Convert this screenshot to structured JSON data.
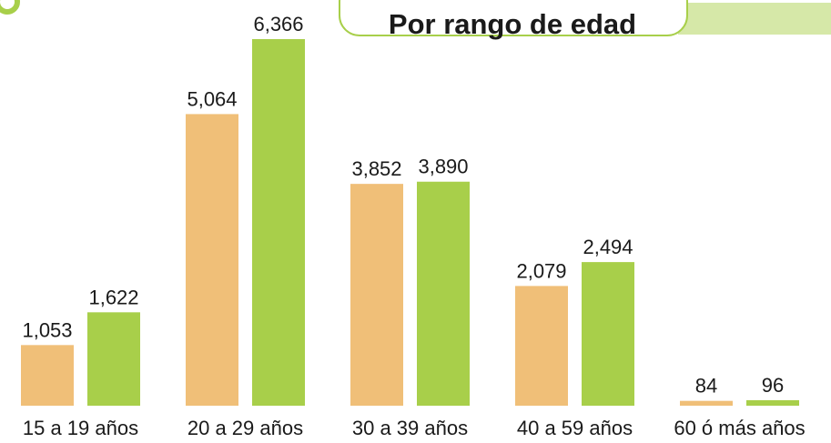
{
  "chart_data": {
    "type": "bar",
    "title": "Por rango de edad",
    "categories": [
      "15 a 19 años",
      "20 a 29 años",
      "30 a 39 años",
      "40 a 59 años",
      "60 ó más años"
    ],
    "series": [
      {
        "color": "#f0bf78",
        "values": [
          1053,
          5064,
          3852,
          2079,
          84
        ],
        "value_labels": [
          "1,053",
          "5,064",
          "3,852",
          "2,079",
          "84"
        ]
      },
      {
        "color": "#a8cf4a",
        "values": [
          1622,
          6366,
          3890,
          2494,
          96
        ],
        "value_labels": [
          "1,622",
          "6,366",
          "3,890",
          "2,494",
          "96"
        ]
      }
    ]
  }
}
